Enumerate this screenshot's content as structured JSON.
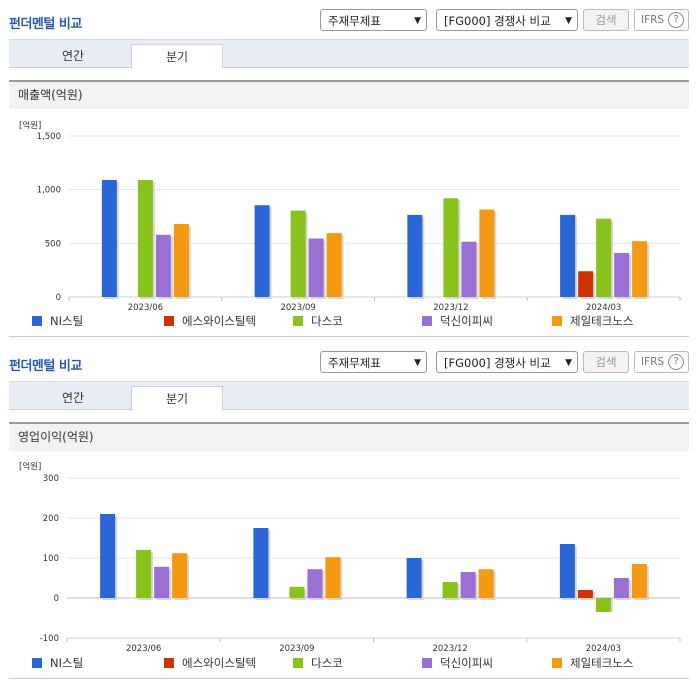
{
  "header_controls": {
    "title": "펀더멘털 비교",
    "select_main": "주재무제표",
    "select_compare": "[FG000] 경쟁사 비교",
    "search_label": "검색",
    "ifrs_label": "IFRS",
    "ifrs_help": "?"
  },
  "tabs": [
    "연간",
    "분기"
  ],
  "active_tab": "분기",
  "colors": {
    "NI스틸": "#2b66d6",
    "에스와이스틸텍": "#cc3300",
    "다스코": "#88c21b",
    "덕신이피씨": "#9b70d4",
    "제일테크노스": "#f39a12"
  },
  "chart_data": [
    {
      "type": "bar",
      "title": "매출액(억원)",
      "unit": "[억원]",
      "categories": [
        "2023/06",
        "2023/09",
        "2023/12",
        "2024/03"
      ],
      "ylim": [
        0,
        1500
      ],
      "yticks": [
        "0",
        "500",
        "1,000",
        "1,500"
      ],
      "ytick_values": [
        0,
        500,
        1000,
        1500
      ],
      "grid": true,
      "legend": "bottom",
      "series": [
        {
          "name": "NI스틸",
          "values": [
            1090,
            855,
            765,
            765
          ]
        },
        {
          "name": "에스와이스틸텍",
          "values": [
            null,
            null,
            null,
            240
          ]
        },
        {
          "name": "다스코",
          "values": [
            1090,
            805,
            920,
            730
          ]
        },
        {
          "name": "덕신이피씨",
          "values": [
            580,
            545,
            515,
            410
          ]
        },
        {
          "name": "제일테크노스",
          "values": [
            680,
            595,
            815,
            520
          ]
        }
      ]
    },
    {
      "type": "bar",
      "title": "영업이익(억원)",
      "unit": "[억원]",
      "categories": [
        "2023/06",
        "2023/09",
        "2023/12",
        "2024/03"
      ],
      "ylim": [
        -100,
        300
      ],
      "yticks": [
        "-100",
        "0",
        "100",
        "200",
        "300"
      ],
      "ytick_values": [
        -100,
        0,
        100,
        200,
        300
      ],
      "grid": true,
      "legend": "bottom",
      "series": [
        {
          "name": "NI스틸",
          "values": [
            210,
            175,
            100,
            135
          ]
        },
        {
          "name": "에스와이스틸텍",
          "values": [
            null,
            null,
            null,
            20
          ]
        },
        {
          "name": "다스코",
          "values": [
            120,
            28,
            40,
            -35
          ]
        },
        {
          "name": "덕신이피씨",
          "values": [
            78,
            72,
            65,
            50
          ]
        },
        {
          "name": "제일테크노스",
          "values": [
            112,
            102,
            72,
            85
          ]
        }
      ]
    }
  ]
}
